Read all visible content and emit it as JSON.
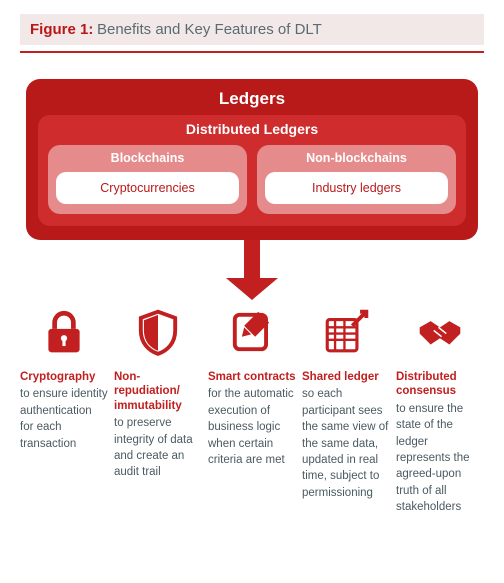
{
  "figure": {
    "label": "Figure 1:",
    "title": "Benefits and Key Features of DLT",
    "rule_color": "#c22020"
  },
  "colors": {
    "primary": "#c22020",
    "panel_outer": "#b81a1a",
    "panel_mid": "#cf2d2d",
    "panel_inner": "#e58b8b",
    "panel_leaf_bg": "#ffffff",
    "panel_leaf_text": "#b81a1a",
    "title_bg": "#f2e8e8",
    "feature_title": "#c22020",
    "feature_text": "#4a5a62"
  },
  "taxonomy": {
    "root": "Ledgers",
    "level2": "Distributed Ledgers",
    "branches": [
      {
        "name": "Blockchains",
        "leaf": "Cryptocurrencies"
      },
      {
        "name": "Non-blockchains",
        "leaf": "Industry ledgers"
      }
    ]
  },
  "features": [
    {
      "icon": "lock",
      "title": "Cryptography",
      "desc": "to ensure identity authentication for each transaction"
    },
    {
      "icon": "shield",
      "title": "Non-repudiation/ immutability",
      "desc": "to preserve integrity of data and create an audit trail"
    },
    {
      "icon": "contract",
      "title": "Smart contracts",
      "desc": "for the automatic execution of business logic when certain criteria are met"
    },
    {
      "icon": "ledger",
      "title": "Shared ledger",
      "desc": "so each participant sees the same view of the same data, updated in real time, subject to permissioning"
    },
    {
      "icon": "handshake",
      "title": "Distributed consensus",
      "desc": "to ensure the state of the ledger represents the agreed-upon truth of all stakeholders"
    }
  ]
}
